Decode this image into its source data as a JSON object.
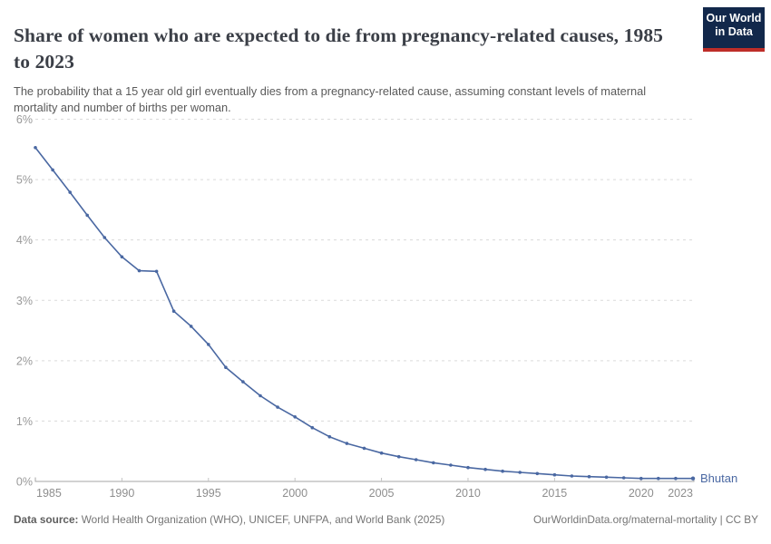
{
  "header": {
    "title": "Share of women who are expected to die from pregnancy-related causes, 1985 to 2023",
    "subtitle": "The probability that a 15 year old girl eventually dies from a pregnancy-related cause, assuming constant levels of maternal mortality and number of births per woman."
  },
  "logo": {
    "line1": "Our World",
    "line2": "in Data",
    "bg_color": "#12284B",
    "stripe_color": "#BE2D28"
  },
  "chart_data": {
    "type": "line",
    "title": "Share of women who are expected to die from pregnancy-related causes, 1985 to 2023",
    "xlabel": "",
    "ylabel": "",
    "ylim": [
      0,
      6
    ],
    "grid": "horizontal-dashed",
    "legend": "end-of-line-label",
    "yticks": [
      "0%",
      "1%",
      "2%",
      "3%",
      "4%",
      "5%",
      "6%"
    ],
    "xticks": [
      1985,
      1990,
      1995,
      2000,
      2005,
      2010,
      2015,
      2020,
      2023
    ],
    "x": [
      1985,
      1986,
      1987,
      1988,
      1989,
      1990,
      1991,
      1992,
      1993,
      1994,
      1995,
      1996,
      1997,
      1998,
      1999,
      2000,
      2001,
      2002,
      2003,
      2004,
      2005,
      2006,
      2007,
      2008,
      2009,
      2010,
      2011,
      2012,
      2013,
      2014,
      2015,
      2016,
      2017,
      2018,
      2019,
      2020,
      2021,
      2022,
      2023
    ],
    "series": [
      {
        "name": "Bhutan",
        "color": "#4A68A2",
        "values": [
          5.53,
          5.16,
          4.79,
          4.41,
          4.04,
          3.72,
          3.49,
          3.48,
          2.82,
          2.57,
          2.27,
          1.89,
          1.65,
          1.42,
          1.23,
          1.07,
          0.89,
          0.74,
          0.63,
          0.55,
          0.47,
          0.41,
          0.36,
          0.31,
          0.27,
          0.23,
          0.2,
          0.17,
          0.15,
          0.13,
          0.11,
          0.09,
          0.08,
          0.07,
          0.06,
          0.05,
          0.05,
          0.05,
          0.05
        ]
      }
    ],
    "colors": {
      "gridline": "#dadada",
      "axis_line": "#a6a6a6",
      "axis_tick": "#c4c4c4"
    }
  },
  "footer": {
    "data_source_prefix": "Data source:",
    "data_source_text": " World Health Organization (WHO), UNICEF, UNFPA, and World Bank (2025)",
    "link": "OurWorldinData.org/maternal-mortality",
    "separator": " | ",
    "license": "CC BY"
  }
}
